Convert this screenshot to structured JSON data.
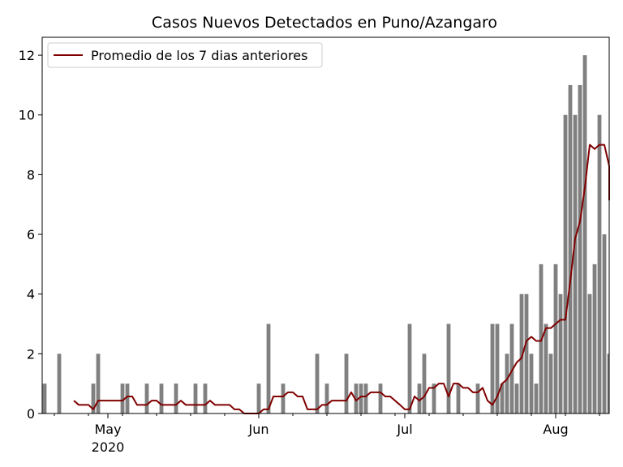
{
  "chart_data": {
    "type": "bar",
    "title": "Casos Nuevos Detectados en Puno/Azangaro",
    "xlabel": "",
    "ylabel": "",
    "x_start": "2020-04-18",
    "x_end": "2020-08-12",
    "ylim": [
      0,
      12.6
    ],
    "yticks": [
      0,
      2,
      4,
      6,
      8,
      10,
      12
    ],
    "xticks": [
      {
        "date": "2020-05-01",
        "label": "May",
        "sublabel": "2020"
      },
      {
        "date": "2020-06-01",
        "label": "Jun",
        "sublabel": ""
      },
      {
        "date": "2020-07-01",
        "label": "Jul",
        "sublabel": ""
      },
      {
        "date": "2020-08-01",
        "label": "Aug",
        "sublabel": ""
      }
    ],
    "legend_position": "top-left",
    "grid": false,
    "bar_color": "#808080",
    "line_color": "#800000",
    "series": [
      {
        "type": "bar",
        "points": [
          [
            "2020-04-18",
            1
          ],
          [
            "2020-04-21",
            2
          ],
          [
            "2020-04-28",
            1
          ],
          [
            "2020-04-29",
            2
          ],
          [
            "2020-05-04",
            1
          ],
          [
            "2020-05-05",
            1
          ],
          [
            "2020-05-09",
            1
          ],
          [
            "2020-05-12",
            1
          ],
          [
            "2020-05-15",
            1
          ],
          [
            "2020-05-19",
            1
          ],
          [
            "2020-05-21",
            1
          ],
          [
            "2020-06-01",
            1
          ],
          [
            "2020-06-03",
            3
          ],
          [
            "2020-06-06",
            1
          ],
          [
            "2020-06-13",
            2
          ],
          [
            "2020-06-15",
            1
          ],
          [
            "2020-06-19",
            2
          ],
          [
            "2020-06-21",
            1
          ],
          [
            "2020-06-22",
            1
          ],
          [
            "2020-06-23",
            1
          ],
          [
            "2020-06-26",
            1
          ],
          [
            "2020-07-02",
            3
          ],
          [
            "2020-07-04",
            1
          ],
          [
            "2020-07-05",
            2
          ],
          [
            "2020-07-07",
            1
          ],
          [
            "2020-07-10",
            3
          ],
          [
            "2020-07-12",
            1
          ],
          [
            "2020-07-16",
            1
          ],
          [
            "2020-07-19",
            3
          ],
          [
            "2020-07-20",
            3
          ],
          [
            "2020-07-21",
            1
          ],
          [
            "2020-07-22",
            2
          ],
          [
            "2020-07-23",
            3
          ],
          [
            "2020-07-24",
            1
          ],
          [
            "2020-07-25",
            4
          ],
          [
            "2020-07-26",
            4
          ],
          [
            "2020-07-27",
            2
          ],
          [
            "2020-07-28",
            1
          ],
          [
            "2020-07-29",
            5
          ],
          [
            "2020-07-30",
            3
          ],
          [
            "2020-07-31",
            2
          ],
          [
            "2020-08-01",
            5
          ],
          [
            "2020-08-02",
            4
          ],
          [
            "2020-08-03",
            10
          ],
          [
            "2020-08-04",
            11
          ],
          [
            "2020-08-05",
            10
          ],
          [
            "2020-08-06",
            11
          ],
          [
            "2020-08-07",
            12
          ],
          [
            "2020-08-08",
            4
          ],
          [
            "2020-08-09",
            5
          ],
          [
            "2020-08-10",
            10
          ],
          [
            "2020-08-11",
            6
          ],
          [
            "2020-08-12",
            2
          ]
        ]
      },
      {
        "type": "line",
        "name": "Promedio de los 7 dias anteriores",
        "points": [
          [
            "2020-04-24",
            0.43
          ],
          [
            "2020-04-25",
            0.29
          ],
          [
            "2020-04-26",
            0.29
          ],
          [
            "2020-04-27",
            0.29
          ],
          [
            "2020-04-28",
            0.14
          ],
          [
            "2020-04-29",
            0.43
          ],
          [
            "2020-04-30",
            0.43
          ],
          [
            "2020-05-01",
            0.43
          ],
          [
            "2020-05-02",
            0.43
          ],
          [
            "2020-05-03",
            0.43
          ],
          [
            "2020-05-04",
            0.43
          ],
          [
            "2020-05-05",
            0.57
          ],
          [
            "2020-05-06",
            0.57
          ],
          [
            "2020-05-07",
            0.29
          ],
          [
            "2020-05-08",
            0.29
          ],
          [
            "2020-05-09",
            0.29
          ],
          [
            "2020-05-10",
            0.43
          ],
          [
            "2020-05-11",
            0.43
          ],
          [
            "2020-05-12",
            0.29
          ],
          [
            "2020-05-13",
            0.29
          ],
          [
            "2020-05-14",
            0.29
          ],
          [
            "2020-05-15",
            0.29
          ],
          [
            "2020-05-16",
            0.43
          ],
          [
            "2020-05-17",
            0.29
          ],
          [
            "2020-05-18",
            0.29
          ],
          [
            "2020-05-19",
            0.29
          ],
          [
            "2020-05-20",
            0.29
          ],
          [
            "2020-05-21",
            0.29
          ],
          [
            "2020-05-22",
            0.43
          ],
          [
            "2020-05-23",
            0.29
          ],
          [
            "2020-05-24",
            0.29
          ],
          [
            "2020-05-25",
            0.29
          ],
          [
            "2020-05-26",
            0.29
          ],
          [
            "2020-05-27",
            0.14
          ],
          [
            "2020-05-28",
            0.14
          ],
          [
            "2020-05-29",
            0
          ],
          [
            "2020-05-30",
            0
          ],
          [
            "2020-05-31",
            0
          ],
          [
            "2020-06-01",
            0
          ],
          [
            "2020-06-02",
            0.14
          ],
          [
            "2020-06-03",
            0.14
          ],
          [
            "2020-06-04",
            0.57
          ],
          [
            "2020-06-05",
            0.57
          ],
          [
            "2020-06-06",
            0.57
          ],
          [
            "2020-06-07",
            0.71
          ],
          [
            "2020-06-08",
            0.71
          ],
          [
            "2020-06-09",
            0.57
          ],
          [
            "2020-06-10",
            0.57
          ],
          [
            "2020-06-11",
            0.14
          ],
          [
            "2020-06-12",
            0.14
          ],
          [
            "2020-06-13",
            0.14
          ],
          [
            "2020-06-14",
            0.29
          ],
          [
            "2020-06-15",
            0.29
          ],
          [
            "2020-06-16",
            0.43
          ],
          [
            "2020-06-17",
            0.43
          ],
          [
            "2020-06-18",
            0.43
          ],
          [
            "2020-06-19",
            0.43
          ],
          [
            "2020-06-20",
            0.71
          ],
          [
            "2020-06-21",
            0.43
          ],
          [
            "2020-06-22",
            0.57
          ],
          [
            "2020-06-23",
            0.57
          ],
          [
            "2020-06-24",
            0.71
          ],
          [
            "2020-06-25",
            0.71
          ],
          [
            "2020-06-26",
            0.71
          ],
          [
            "2020-06-27",
            0.57
          ],
          [
            "2020-06-28",
            0.57
          ],
          [
            "2020-06-29",
            0.43
          ],
          [
            "2020-06-30",
            0.29
          ],
          [
            "2020-07-01",
            0.14
          ],
          [
            "2020-07-02",
            0.14
          ],
          [
            "2020-07-03",
            0.57
          ],
          [
            "2020-07-04",
            0.43
          ],
          [
            "2020-07-05",
            0.57
          ],
          [
            "2020-07-06",
            0.86
          ],
          [
            "2020-07-07",
            0.86
          ],
          [
            "2020-07-08",
            1
          ],
          [
            "2020-07-09",
            1
          ],
          [
            "2020-07-10",
            0.57
          ],
          [
            "2020-07-11",
            1
          ],
          [
            "2020-07-12",
            1
          ],
          [
            "2020-07-13",
            0.86
          ],
          [
            "2020-07-14",
            0.86
          ],
          [
            "2020-07-15",
            0.71
          ],
          [
            "2020-07-16",
            0.71
          ],
          [
            "2020-07-17",
            0.86
          ],
          [
            "2020-07-18",
            0.43
          ],
          [
            "2020-07-19",
            0.29
          ],
          [
            "2020-07-20",
            0.57
          ],
          [
            "2020-07-21",
            1
          ],
          [
            "2020-07-22",
            1.14
          ],
          [
            "2020-07-23",
            1.43
          ],
          [
            "2020-07-24",
            1.71
          ],
          [
            "2020-07-25",
            1.86
          ],
          [
            "2020-07-26",
            2.43
          ],
          [
            "2020-07-27",
            2.57
          ],
          [
            "2020-07-28",
            2.43
          ],
          [
            "2020-07-29",
            2.43
          ],
          [
            "2020-07-30",
            2.86
          ],
          [
            "2020-07-31",
            2.86
          ],
          [
            "2020-08-01",
            3
          ],
          [
            "2020-08-02",
            3.14
          ],
          [
            "2020-08-03",
            3.14
          ],
          [
            "2020-08-04",
            4.43
          ],
          [
            "2020-08-05",
            5.86
          ],
          [
            "2020-08-06",
            6.43
          ],
          [
            "2020-08-07",
            7.57
          ],
          [
            "2020-08-08",
            9
          ],
          [
            "2020-08-09",
            8.86
          ],
          [
            "2020-08-10",
            9
          ],
          [
            "2020-08-11",
            9
          ],
          [
            "2020-08-12",
            8.29
          ],
          [
            "2020-08-13",
            7.14
          ]
        ]
      }
    ]
  }
}
